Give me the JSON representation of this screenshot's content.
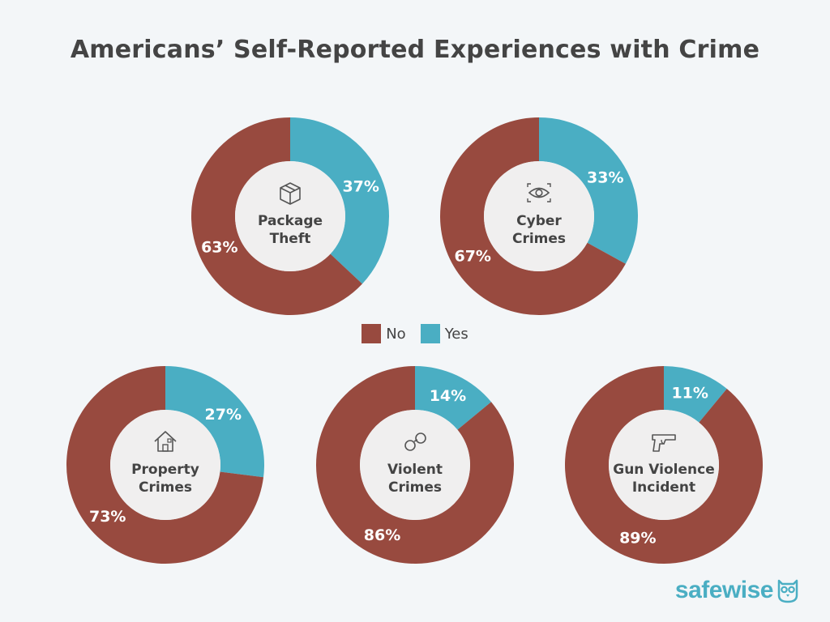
{
  "colors": {
    "no": "#984a3f",
    "yes": "#4aaec3",
    "center": "#f0efef",
    "text_dark": "#444444",
    "pct_text": "#ffffff"
  },
  "legend": {
    "no_label": "No",
    "yes_label": "Yes"
  },
  "brand": {
    "name": "safewise",
    "icon": "owl-icon"
  },
  "chart_data": {
    "type": "pie",
    "title": "Americans’ Self-Reported Experiences with Crime",
    "charts": [
      {
        "id": "package-theft",
        "label_lines": [
          "Package",
          "Theft"
        ],
        "icon": "package-icon",
        "no": 63,
        "yes": 37,
        "no_label": "63%",
        "yes_label": "37%"
      },
      {
        "id": "cyber-crimes",
        "label_lines": [
          "Cyber",
          "Crimes"
        ],
        "icon": "eye-icon",
        "no": 67,
        "yes": 33,
        "no_label": "67%",
        "yes_label": "33%"
      },
      {
        "id": "property-crimes",
        "label_lines": [
          "Property",
          "Crimes"
        ],
        "icon": "house-icon",
        "no": 73,
        "yes": 27,
        "no_label": "73%",
        "yes_label": "27%"
      },
      {
        "id": "violent-crimes",
        "label_lines": [
          "Violent",
          "Crimes"
        ],
        "icon": "handcuffs-icon",
        "no": 86,
        "yes": 14,
        "no_label": "86%",
        "yes_label": "14%"
      },
      {
        "id": "gun-violence-incident",
        "label_lines": [
          "Gun Violence",
          "Incident"
        ],
        "icon": "gun-icon",
        "no": 89,
        "yes": 11,
        "no_label": "89%",
        "yes_label": "11%"
      }
    ]
  }
}
